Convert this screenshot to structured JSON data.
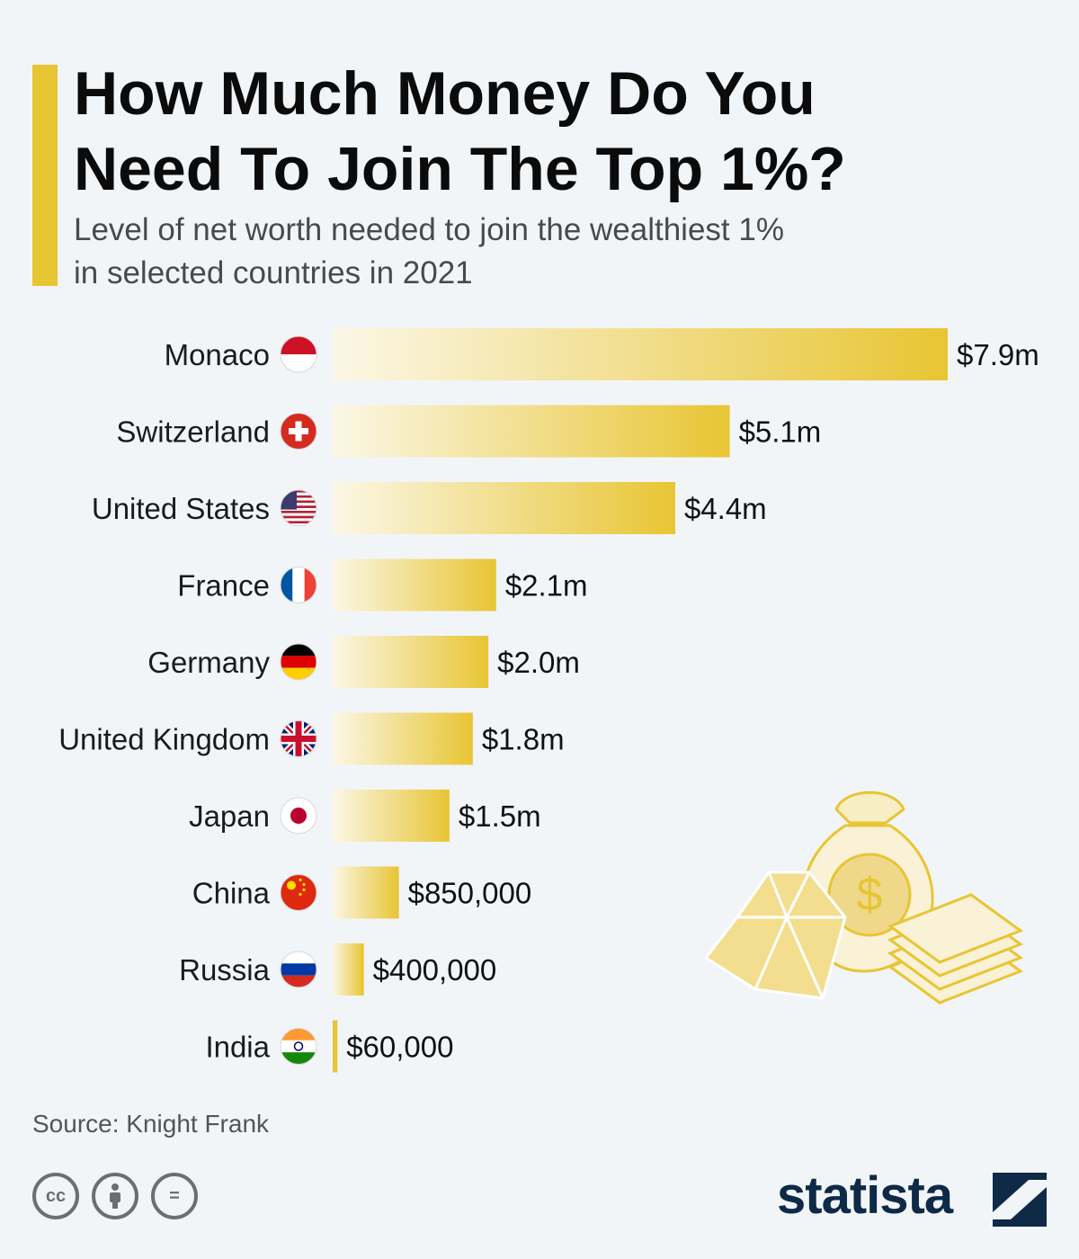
{
  "header": {
    "title_line1": "How Much Money Do You",
    "title_line2": "Need To Join The Top 1%?",
    "subtitle_line1": "Level of net worth needed to join the wealthiest 1%",
    "subtitle_line2": "in selected countries in 2021"
  },
  "chart_data": {
    "type": "bar",
    "orientation": "horizontal",
    "title": "How Much Money Do You Need To Join The Top 1%?",
    "subtitle": "Level of net worth needed to join the wealthiest 1% in selected countries in 2021",
    "categories": [
      "Monaco",
      "Switzerland",
      "United States",
      "France",
      "Germany",
      "United Kingdom",
      "Japan",
      "China",
      "Russia",
      "India"
    ],
    "values": [
      7900000,
      5100000,
      4400000,
      2100000,
      2000000,
      1800000,
      1500000,
      850000,
      400000,
      60000
    ],
    "labels": [
      "$7.9m",
      "$5.1m",
      "$4.4m",
      "$2.1m",
      "$2.0m",
      "$1.8m",
      "$1.5m",
      "$850,000",
      "$400,000",
      "$60,000"
    ],
    "flags": [
      "monaco-flag-icon",
      "switzerland-flag-icon",
      "us-flag-icon",
      "france-flag-icon",
      "germany-flag-icon",
      "uk-flag-icon",
      "japan-flag-icon",
      "china-flag-icon",
      "russia-flag-icon",
      "india-flag-icon"
    ],
    "xlim": [
      0,
      7900000
    ],
    "xlabel": "",
    "ylabel": "",
    "grid": false,
    "legend": "none",
    "bar_color": "#e8c533",
    "bar_color_start": "#fbf7e6"
  },
  "footer": {
    "source": "Source: Knight Frank",
    "brand": "statista",
    "license_icons": [
      "creative-commons-icon",
      "attribution-icon",
      "no-derivatives-icon"
    ],
    "cc_text": "cc",
    "eq_text": "="
  },
  "colors": {
    "accent": "#e8c533",
    "background": "#f2f5f8",
    "brand": "#0e2a47"
  }
}
